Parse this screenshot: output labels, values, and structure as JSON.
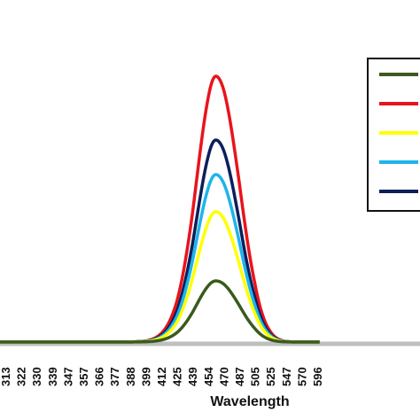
{
  "chart_data": {
    "type": "line",
    "title": "",
    "xlabel": "Wavelength",
    "ylabel": "",
    "x_tick_labels": [
      "313",
      "322",
      "330",
      "339",
      "347",
      "357",
      "366",
      "377",
      "388",
      "399",
      "412",
      "425",
      "439",
      "454",
      "470",
      "487",
      "505",
      "525",
      "547",
      "570",
      "596"
    ],
    "x_range": [
      300,
      600
    ],
    "y_range": [
      0,
      1.05
    ],
    "grid": false,
    "legend": {
      "placement": "right",
      "entries": 5
    },
    "series": [
      {
        "color": "#e8141c",
        "peak_x": 462,
        "peak_y": 1.0,
        "width_left": 27,
        "width_right": 35
      },
      {
        "color": "#0c1f5c",
        "peak_x": 462,
        "peak_y": 0.76,
        "width_left": 27,
        "width_right": 35
      },
      {
        "color": "#1eb4ec",
        "peak_x": 462,
        "peak_y": 0.63,
        "width_left": 27,
        "width_right": 35
      },
      {
        "color": "#ffff00",
        "peak_x": 462,
        "peak_y": 0.49,
        "width_left": 27,
        "width_right": 35
      },
      {
        "color": "#3a5a1e",
        "peak_x": 462,
        "peak_y": 0.23,
        "width_left": 27,
        "width_right": 35
      }
    ],
    "legend_order": [
      "#3a5a1e",
      "#e8141c",
      "#ffff00",
      "#1eb4ec",
      "#0c1f5c"
    ]
  }
}
